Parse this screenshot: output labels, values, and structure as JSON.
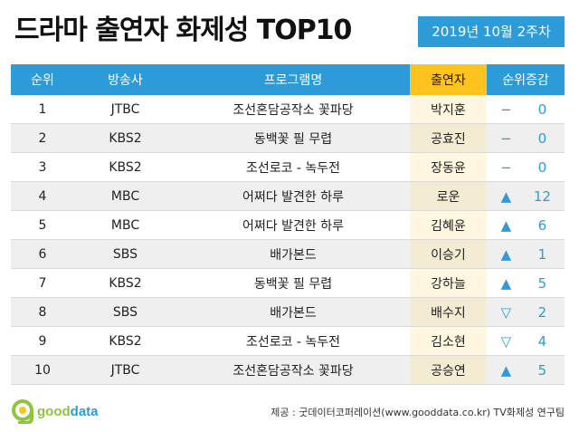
{
  "title": "드라마 출연자 화제성 TOP10",
  "date": "2019년 10월 2주차",
  "headers": {
    "rank": "순위",
    "broadcaster": "방송사",
    "program": "프로그램명",
    "cast": "출연자",
    "change": "순위증감"
  },
  "rows": [
    {
      "rank": "1",
      "broadcaster": "JTBC",
      "program": "조선혼담공작소 꽃파당",
      "cast": "박지훈",
      "mark": "−",
      "change": "0"
    },
    {
      "rank": "2",
      "broadcaster": "KBS2",
      "program": "동백꽃 필 무렵",
      "cast": "공효진",
      "mark": "−",
      "change": "0"
    },
    {
      "rank": "3",
      "broadcaster": "KBS2",
      "program": "조선로코 - 녹두전",
      "cast": "장동윤",
      "mark": "−",
      "change": "0"
    },
    {
      "rank": "4",
      "broadcaster": "MBC",
      "program": "어쩌다 발견한 하루",
      "cast": "로운",
      "mark": "▲",
      "change": "12"
    },
    {
      "rank": "5",
      "broadcaster": "MBC",
      "program": "어쩌다 발견한 하루",
      "cast": "김혜윤",
      "mark": "▲",
      "change": "6"
    },
    {
      "rank": "6",
      "broadcaster": "SBS",
      "program": "배가본드",
      "cast": "이승기",
      "mark": "▲",
      "change": "1"
    },
    {
      "rank": "7",
      "broadcaster": "KBS2",
      "program": "동백꽃 필 무렵",
      "cast": "강하늘",
      "mark": "▲",
      "change": "5"
    },
    {
      "rank": "8",
      "broadcaster": "SBS",
      "program": "배가본드",
      "cast": "배수지",
      "mark": "▽",
      "change": "2"
    },
    {
      "rank": "9",
      "broadcaster": "KBS2",
      "program": "조선로코 - 녹두전",
      "cast": "김소현",
      "mark": "▽",
      "change": "4"
    },
    {
      "rank": "10",
      "broadcaster": "JTBC",
      "program": "조선혼담공작소 꽃파당",
      "cast": "공승연",
      "mark": "▲",
      "change": "5"
    }
  ],
  "logo": {
    "part1": "good",
    "part2": "data"
  },
  "source": "제공 : 굿데이터코퍼레이션(www.gooddata.co.kr) TV화제성 연구팀",
  "colors": {
    "accent": "#2d9bd8",
    "highlight": "#ffc31f",
    "logo_green": "#8cc63f"
  }
}
